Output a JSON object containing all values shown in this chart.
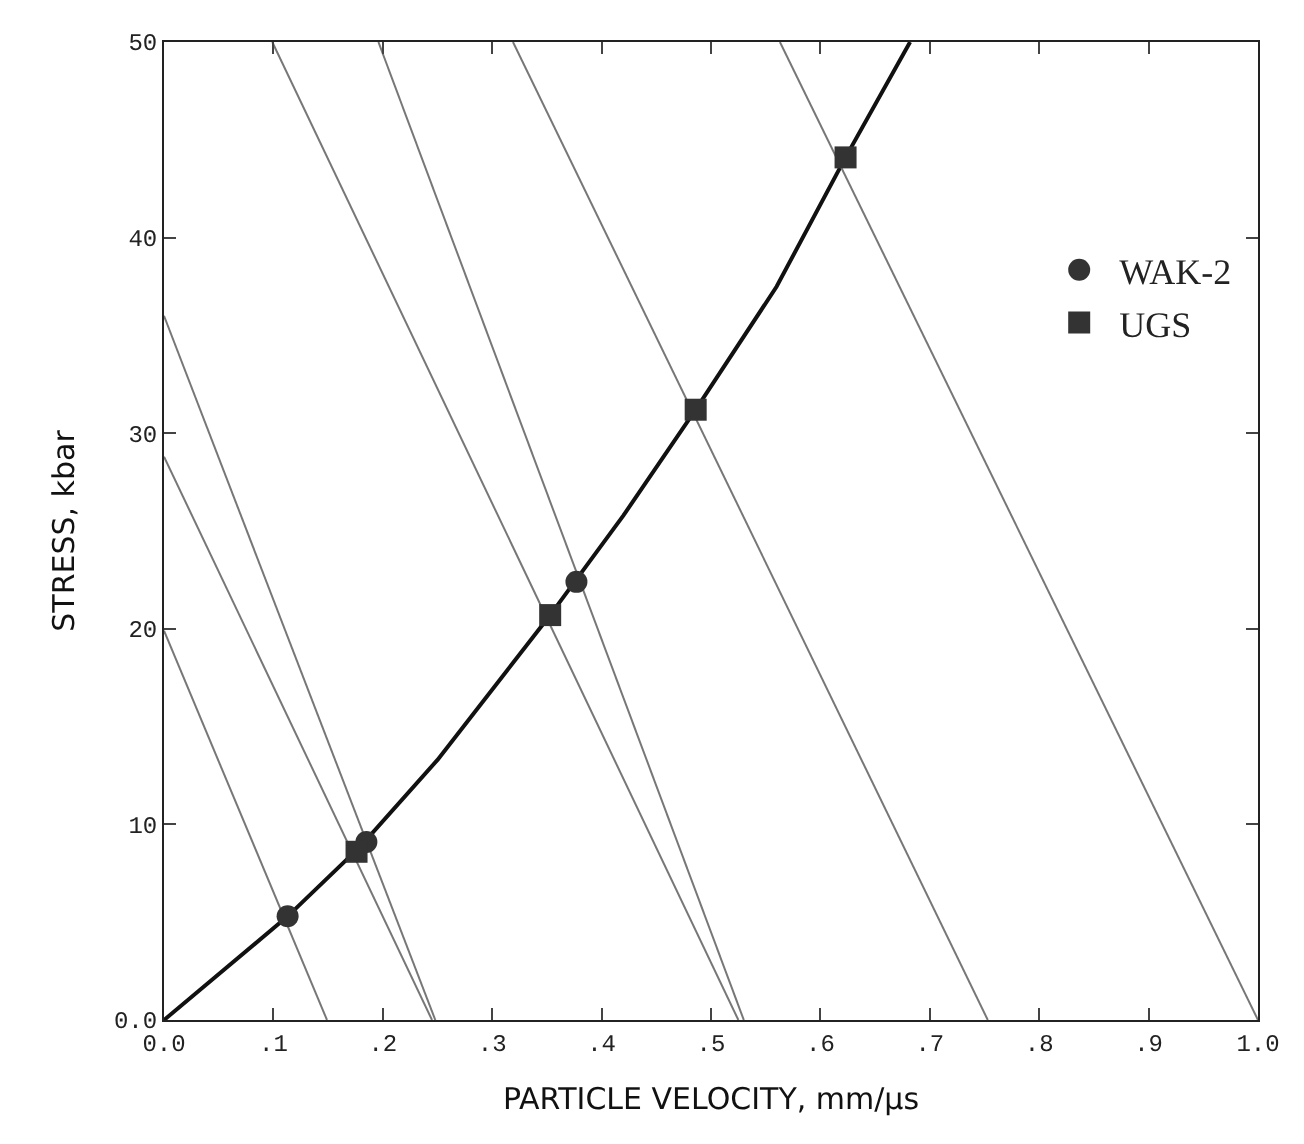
{
  "chart_data": {
    "type": "line",
    "xlabel": "PARTICLE VELOCITY, mm/µs",
    "ylabel": "STRESS, kbar",
    "xlim": [
      0,
      1.0
    ],
    "ylim": [
      0,
      50
    ],
    "xticks": [
      {
        "value": 0,
        "label": "0.0"
      },
      {
        "value": 0.1,
        "label": ".1"
      },
      {
        "value": 0.2,
        "label": ".2"
      },
      {
        "value": 0.3,
        "label": ".3"
      },
      {
        "value": 0.4,
        "label": ".4"
      },
      {
        "value": 0.5,
        "label": ".5"
      },
      {
        "value": 0.6,
        "label": ".6"
      },
      {
        "value": 0.7,
        "label": ".7"
      },
      {
        "value": 0.8,
        "label": ".8"
      },
      {
        "value": 0.9,
        "label": ".9"
      },
      {
        "value": 1.0,
        "label": "1.0"
      }
    ],
    "yticks": [
      {
        "value": 0,
        "label": "0.0"
      },
      10,
      20,
      30,
      40,
      50
    ],
    "legend": "right",
    "series": [
      {
        "color": "#111111",
        "marker": "none",
        "line_style": "solid",
        "x": [
          0,
          0.113,
          0.18,
          0.25,
          0.353,
          0.42,
          0.486,
          0.56,
          0.623,
          0.682
        ],
        "values": [
          0,
          5.3,
          8.9,
          13.3,
          20.7,
          25.8,
          31.2,
          37.5,
          44.1,
          50
        ]
      },
      {
        "type": "line",
        "color": "#777777",
        "marker": "none",
        "line_style": "solid",
        "x": [
          0,
          0.149
        ],
        "values": [
          19.9,
          0
        ]
      },
      {
        "type": "line",
        "color": "#777777",
        "marker": "none",
        "line_style": "solid",
        "x": [
          0,
          0.245
        ],
        "values": [
          28.8,
          0
        ]
      },
      {
        "type": "line",
        "color": "#777777",
        "marker": "none",
        "line_style": "solid",
        "x": [
          0,
          0.248
        ],
        "values": [
          36.0,
          0
        ]
      },
      {
        "type": "line",
        "color": "#777777",
        "marker": "none",
        "line_style": "solid",
        "x": [
          0.099,
          0.525
        ],
        "values": [
          50,
          0
        ]
      },
      {
        "type": "line",
        "color": "#777777",
        "marker": "none",
        "line_style": "solid",
        "x": [
          0.196,
          0.53
        ],
        "values": [
          50,
          0
        ]
      },
      {
        "type": "line",
        "color": "#777777",
        "marker": "none",
        "line_style": "solid",
        "x": [
          0.319,
          0.753
        ],
        "values": [
          50,
          0
        ]
      },
      {
        "type": "line",
        "color": "#777777",
        "marker": "none",
        "line_style": "solid",
        "x": [
          0.563,
          1.0
        ],
        "values": [
          50,
          0
        ]
      },
      {
        "type": "scatter",
        "name": "WAK-2",
        "color": "#333333",
        "marker": "circle",
        "x": [
          0.113,
          0.185,
          0.377
        ],
        "values": [
          5.3,
          9.1,
          22.4
        ]
      },
      {
        "type": "scatter",
        "name": "UGS",
        "color": "#333333",
        "marker": "square",
        "x": [
          0.176,
          0.353,
          0.486,
          0.623
        ],
        "values": [
          8.6,
          20.7,
          31.2,
          44.1
        ]
      }
    ]
  }
}
